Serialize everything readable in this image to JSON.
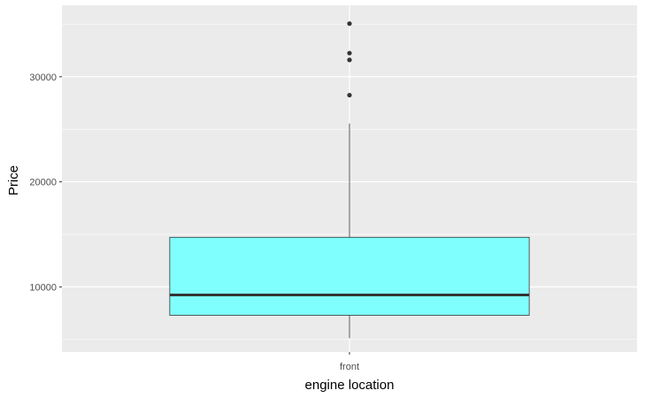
{
  "chart_data": {
    "type": "box",
    "xlabel": "engine location",
    "ylabel": "Price",
    "categories": [
      "front"
    ],
    "boxes": [
      {
        "category": "front",
        "whisker_low": 5118,
        "q1": 7295,
        "median": 9233,
        "q3": 14719,
        "whisker_high": 25552,
        "outliers": [
          28248,
          31600,
          32250,
          35056
        ]
      }
    ],
    "ylim": [
      3800,
      36800
    ],
    "y_ticks": [
      10000,
      20000,
      30000
    ],
    "y_tick_labels": [
      "10000",
      "20000",
      "30000"
    ],
    "grid": true,
    "legend": "none",
    "colors": {
      "box_fill": "#80FFFF",
      "box_stroke": "#333333",
      "panel_bg": "#EBEBEB",
      "grid": "#FFFFFF",
      "outlier": "#333333"
    }
  }
}
